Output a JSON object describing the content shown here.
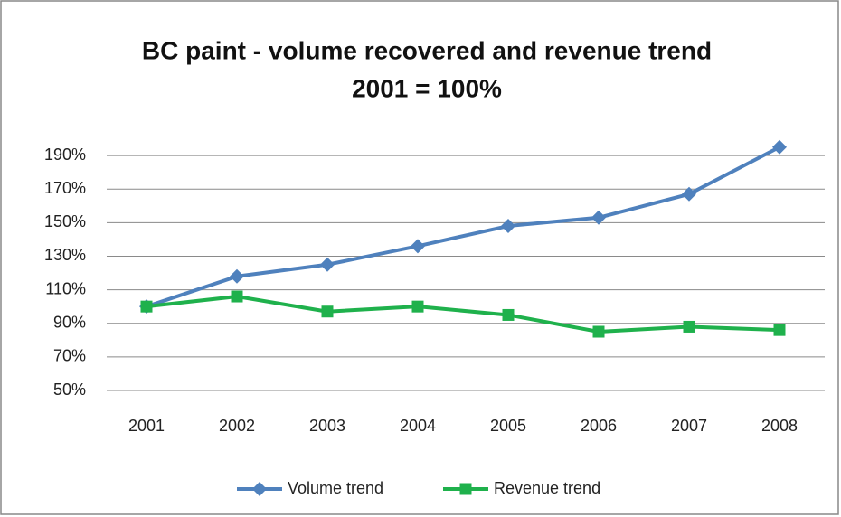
{
  "chart_data": {
    "type": "line",
    "title": "BC paint - volume recovered and revenue trend",
    "subtitle": "2001 = 100%",
    "categories": [
      "2001",
      "2002",
      "2003",
      "2004",
      "2005",
      "2006",
      "2007",
      "2008"
    ],
    "series": [
      {
        "name": "Volume trend",
        "color": "#4f81bd",
        "marker": "diamond",
        "values": [
          100,
          118,
          125,
          136,
          148,
          153,
          167,
          195
        ]
      },
      {
        "name": "Revenue trend",
        "color": "#1fb14c",
        "marker": "square",
        "values": [
          100,
          106,
          97,
          100,
          95,
          85,
          88,
          86
        ]
      }
    ],
    "ylim": [
      50,
      200
    ],
    "yticks": [
      {
        "value": 50,
        "label": "50%"
      },
      {
        "value": 70,
        "label": "70%"
      },
      {
        "value": 90,
        "label": "90%"
      },
      {
        "value": 110,
        "label": "110%"
      },
      {
        "value": 130,
        "label": "130%"
      },
      {
        "value": 150,
        "label": "150%"
      },
      {
        "value": 170,
        "label": "170%"
      },
      {
        "value": 190,
        "label": "190%"
      }
    ],
    "grid": true,
    "legend": "bottom"
  }
}
